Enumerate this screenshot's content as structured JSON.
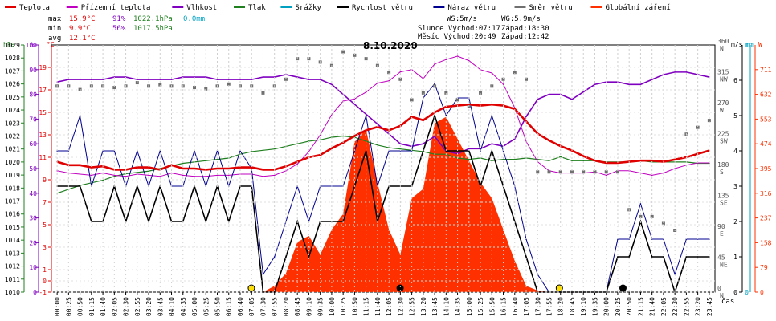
{
  "legend": [
    {
      "label": "Teplota",
      "color": "#e00000"
    },
    {
      "label": "Přízemní teplota",
      "color": "#c000c0"
    },
    {
      "label": "Vlhkost",
      "color": "#8000c0"
    },
    {
      "label": "Tlak",
      "color": "#208020"
    },
    {
      "label": "Srážky",
      "color": "#00a0c0"
    },
    {
      "label": "Rychlost větru",
      "color": "#000000"
    },
    {
      "label": "Náraz větru",
      "color": "#000090"
    },
    {
      "label": "Směr větru",
      "color": "#707070"
    },
    {
      "label": "Globální záření",
      "color": "#ff3000"
    }
  ],
  "stats": {
    "max_label": "max",
    "max_temp": "15.9°C",
    "max_hum": "91%",
    "max_press": "1022.1hPa",
    "rain": "0.0mm",
    "min_label": "min",
    "min_temp": "9.9°C",
    "min_hum": "56%",
    "min_press": "1017.5hPa",
    "avg_label": "avg",
    "avg_temp": "12.1°C"
  },
  "wind_info": {
    "ws": "WS:5m/s",
    "wg": "WG:5.9m/s"
  },
  "sun_info": {
    "sun": "Slunce Východ:07:17",
    "sun_set": "Západ:18:30"
  },
  "moon_info": {
    "moon": "Měsíc Východ:20:49",
    "moon_set": "Západ:12:42"
  },
  "date": "8.10.2020",
  "axis_units": {
    "hpa": "hPa",
    "pct": "%",
    "degc": "°C",
    "ms": "m/s",
    "mm": "mm",
    "w": "W",
    "cas": "čas"
  },
  "chart_data": {
    "type": "line",
    "title": "8.10.2020",
    "xlabel": "čas",
    "x": [
      "00:00",
      "00:25",
      "00:50",
      "01:15",
      "01:40",
      "02:05",
      "02:30",
      "02:55",
      "03:20",
      "03:45",
      "04:10",
      "04:35",
      "05:00",
      "05:25",
      "05:50",
      "06:15",
      "06:40",
      "07:05",
      "07:30",
      "07:55",
      "08:20",
      "08:45",
      "09:10",
      "09:35",
      "10:00",
      "10:25",
      "10:50",
      "11:15",
      "11:40",
      "12:05",
      "12:30",
      "12:55",
      "13:20",
      "13:45",
      "14:10",
      "14:35",
      "15:00",
      "15:25",
      "15:50",
      "16:15",
      "16:40",
      "17:05",
      "17:30",
      "17:55",
      "18:20",
      "18:45",
      "19:10",
      "19:35",
      "20:00",
      "20:25",
      "20:50",
      "21:15",
      "21:40",
      "22:05",
      "22:30",
      "22:55",
      "23:20",
      "23:45"
    ],
    "x_tick_labels": [
      "00:00",
      "00:25",
      "00:50",
      "01:15",
      "01:40",
      "02:05",
      "02:30",
      "02:55",
      "03:20",
      "03:45",
      "04:10",
      "04:35",
      "05:00",
      "05:25",
      "05:50",
      "06:15",
      "06:40",
      "07:05",
      "07:30",
      "07:55",
      "08:20",
      "08:45",
      "09:10",
      "09:35",
      "10:00",
      "10:25",
      "10:50",
      "11:15",
      "11:40",
      "12:05",
      "12:30",
      "12:55",
      "13:20",
      "13:45",
      "14:10",
      "14:35",
      "15:00",
      "15:25",
      "15:50",
      "16:15",
      "16:40",
      "17:05",
      "17:30",
      "17:55",
      "18:20",
      "18:45",
      "19:10",
      "19:35",
      "20:00",
      "20:25",
      "20:50",
      "21:15",
      "21:40",
      "22:05",
      "22:30",
      "22:55",
      "23:20",
      "23:45"
    ],
    "axes": {
      "pressure_hpa": {
        "ticks": [
          "1010",
          "1011",
          "1012",
          "1013",
          "1014",
          "1015",
          "1016",
          "1017",
          "1018",
          "1019",
          "1020",
          "1021",
          "1022",
          "1023",
          "1024",
          "1025",
          "1026",
          "1027",
          "1028",
          "1029"
        ],
        "range": [
          1010,
          1029
        ]
      },
      "humidity_pct": {
        "ticks": [
          "0",
          "10",
          "20",
          "30",
          "40",
          "50",
          "60",
          "70",
          "80",
          "90",
          "100"
        ],
        "range": [
          0,
          100
        ]
      },
      "temp_c": {
        "ticks": [
          "-1",
          "0",
          "1",
          "3",
          "5",
          "7",
          "9",
          "11",
          "13",
          "15",
          "17",
          "19"
        ],
        "range": [
          -1,
          21
        ]
      },
      "wind_ms": {
        "ticks": [
          "0",
          "1",
          "2",
          "3",
          "4",
          "5",
          "6"
        ],
        "range": [
          0,
          7
        ]
      },
      "rain_mm": {
        "ticks": [
          "0",
          "1"
        ],
        "range": [
          0,
          1
        ]
      },
      "radiation_w": {
        "ticks": [
          "0",
          "79",
          "158",
          "237",
          "316",
          "395",
          "474",
          "553",
          "632",
          "711"
        ],
        "range": [
          0,
          790
        ]
      },
      "direction": {
        "ticks": [
          "0 N",
          "45 NE",
          "90 E",
          "135 SE",
          "180 S",
          "225 SW",
          "270 W",
          "315 NW",
          "360 N"
        ],
        "range": [
          0,
          360
        ]
      }
    },
    "series": [
      {
        "name": "Teplota",
        "unit": "°C",
        "values": [
          10.6,
          10.3,
          10.3,
          10.1,
          10.2,
          9.9,
          9.9,
          10.1,
          10.1,
          9.9,
          10.3,
          10.0,
          10.0,
          9.9,
          10.0,
          10.0,
          10.1,
          10.1,
          9.9,
          9.9,
          10.2,
          10.6,
          11.0,
          11.2,
          11.8,
          12.3,
          12.9,
          13.4,
          13.7,
          13.4,
          13.8,
          14.6,
          14.3,
          15.0,
          15.5,
          15.6,
          15.7,
          15.6,
          15.7,
          15.6,
          15.3,
          14.2,
          13.1,
          12.5,
          12.0,
          11.6,
          11.1,
          10.7,
          10.5,
          10.5,
          10.6,
          10.7,
          10.7,
          10.6,
          10.8,
          11.0,
          11.3,
          11.6
        ]
      },
      {
        "name": "Přízemní teplota",
        "unit": "°C",
        "values": [
          9.8,
          9.6,
          9.5,
          9.4,
          9.6,
          9.4,
          9.3,
          9.5,
          9.4,
          9.3,
          9.6,
          9.4,
          9.3,
          9.3,
          9.4,
          9.4,
          9.5,
          9.5,
          9.3,
          9.4,
          9.8,
          10.4,
          11.5,
          13.0,
          14.8,
          16.0,
          16.2,
          16.8,
          17.6,
          17.8,
          18.6,
          18.8,
          18.0,
          19.3,
          19.7,
          20.0,
          19.6,
          18.8,
          18.5,
          17.5,
          15.4,
          12.4,
          10.6,
          9.8,
          9.6,
          9.6,
          9.6,
          9.7,
          9.4,
          9.8,
          9.8,
          9.6,
          9.4,
          9.6,
          10.0,
          10.3,
          10.5,
          10.5
        ]
      },
      {
        "name": "Vlhkost",
        "unit": "%",
        "values": [
          85,
          86,
          86,
          86,
          86,
          87,
          87,
          86,
          86,
          86,
          86,
          87,
          87,
          87,
          86,
          86,
          86,
          86,
          87,
          87,
          88,
          87,
          86,
          86,
          84,
          80,
          76,
          72,
          68,
          64,
          60,
          59,
          60,
          63,
          57,
          56,
          58,
          58,
          60,
          59,
          62,
          71,
          78,
          80,
          80,
          78,
          81,
          84,
          85,
          85,
          84,
          84,
          86,
          88,
          89,
          89,
          88,
          87
        ]
      },
      {
        "name": "Tlak",
        "unit": "hPa",
        "values": [
          1017.6,
          1017.9,
          1018.2,
          1018.4,
          1018.6,
          1018.9,
          1019.1,
          1019.2,
          1019.3,
          1019.5,
          1019.7,
          1019.9,
          1020.0,
          1020.1,
          1020.2,
          1020.3,
          1020.6,
          1020.8,
          1020.9,
          1021.0,
          1021.2,
          1021.4,
          1021.6,
          1021.7,
          1021.9,
          1022.0,
          1021.9,
          1021.6,
          1021.3,
          1021.1,
          1021.0,
          1020.9,
          1020.8,
          1020.6,
          1020.6,
          1020.3,
          1020.2,
          1020.3,
          1020.1,
          1020.2,
          1020.2,
          1020.3,
          1020.2,
          1020.1,
          1020.4,
          1020.1,
          1020.1,
          1020.1,
          1020.0,
          1020.0,
          1020.0,
          1020.1,
          1020.0,
          1020.0,
          1020.0,
          1020.0,
          1019.9,
          1019.9
        ]
      },
      {
        "name": "Rychlost větru",
        "unit": "m/s",
        "values": [
          3.0,
          3.0,
          3.0,
          2.0,
          2.0,
          3.0,
          2.0,
          3.0,
          2.0,
          3.0,
          2.0,
          2.0,
          3.0,
          2.0,
          3.0,
          2.0,
          3.0,
          3.0,
          0.0,
          0.0,
          1.0,
          2.0,
          1.0,
          2.0,
          2.0,
          2.0,
          3.0,
          4.0,
          2.0,
          3.0,
          3.0,
          3.0,
          4.0,
          5.0,
          4.0,
          4.0,
          4.0,
          3.0,
          4.0,
          3.0,
          2.0,
          1.0,
          0.0,
          0.0,
          0.0,
          0.0,
          0.0,
          0.0,
          0.0,
          1.0,
          1.0,
          2.0,
          1.0,
          1.0,
          0.0,
          1.0,
          1.0,
          1.0
        ]
      },
      {
        "name": "Náraz větru",
        "unit": "m/s",
        "values": [
          4.0,
          4.0,
          5.0,
          3.0,
          4.0,
          4.0,
          3.0,
          4.0,
          3.0,
          4.0,
          3.0,
          3.0,
          4.0,
          3.0,
          4.0,
          3.0,
          4.0,
          3.5,
          0.5,
          1.0,
          2.0,
          3.0,
          2.0,
          3.0,
          3.0,
          3.0,
          4.0,
          5.0,
          3.0,
          4.0,
          4.0,
          4.0,
          5.5,
          5.9,
          5.0,
          5.5,
          5.5,
          4.0,
          5.0,
          4.0,
          3.0,
          1.5,
          0.5,
          0.0,
          0.0,
          0.0,
          0.0,
          0.0,
          0.0,
          1.5,
          1.5,
          2.5,
          1.5,
          1.5,
          0.5,
          1.5,
          1.5,
          1.5
        ]
      },
      {
        "name": "Globální záření",
        "unit": "W",
        "values": [
          0,
          0,
          0,
          0,
          0,
          0,
          0,
          0,
          0,
          0,
          0,
          0,
          0,
          0,
          0,
          0,
          0,
          0,
          0,
          20,
          60,
          160,
          180,
          120,
          200,
          250,
          480,
          520,
          350,
          200,
          120,
          300,
          330,
          540,
          560,
          490,
          420,
          350,
          300,
          200,
          100,
          20,
          5,
          0,
          0,
          0,
          0,
          0,
          0,
          0,
          0,
          0,
          0,
          0,
          0,
          0,
          0,
          0
        ]
      },
      {
        "name": "Směr větru",
        "unit": "°",
        "values": [
          300,
          300,
          295,
          300,
          300,
          298,
          300,
          305,
          300,
          302,
          300,
          300,
          298,
          296,
          300,
          303,
          300,
          300,
          290,
          300,
          310,
          340,
          340,
          335,
          330,
          350,
          345,
          340,
          330,
          320,
          310,
          280,
          290,
          300,
          290,
          280,
          270,
          290,
          300,
          310,
          320,
          310,
          175,
          175,
          175,
          175,
          175,
          175,
          175,
          175,
          120,
          110,
          110,
          100,
          90,
          230,
          240,
          250
        ]
      }
    ],
    "markers": [
      {
        "label": "sunrise",
        "time": "07:17"
      },
      {
        "label": "moonset",
        "time": "12:42"
      },
      {
        "label": "sunset",
        "time": "18:30"
      },
      {
        "label": "moonrise",
        "time": "20:49"
      }
    ],
    "legend_position": "top",
    "grid": true
  }
}
